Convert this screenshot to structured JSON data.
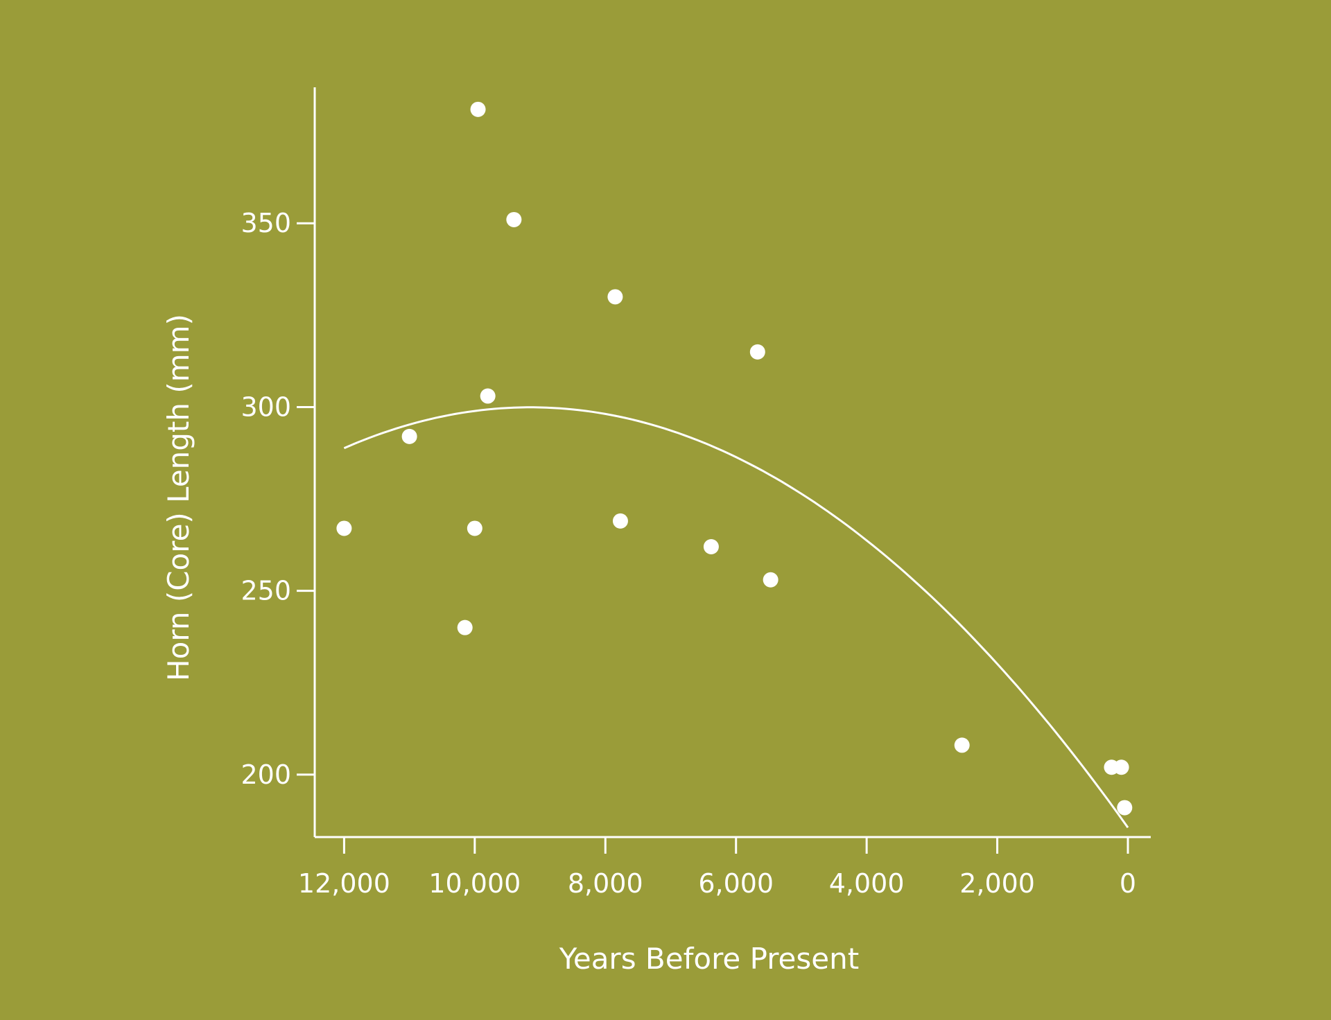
{
  "chart_data": {
    "type": "scatter",
    "xlabel": "Years Before Present",
    "ylabel": "Horn (Core) Length (mm)",
    "xlim": [
      12450,
      -350
    ],
    "ylim": [
      183,
      387
    ],
    "x_ticks": [
      12000,
      10000,
      8000,
      6000,
      4000,
      2000,
      0
    ],
    "x_tick_labels": [
      "12,000",
      "10,000",
      "8,000",
      "6,000",
      "4,000",
      "2,000",
      "0"
    ],
    "y_ticks": [
      200,
      250,
      300,
      350
    ],
    "y_tick_labels": [
      "200",
      "250",
      "300",
      "350"
    ],
    "grid": false,
    "legend": "none",
    "points": [
      {
        "x": 12000,
        "y": 267
      },
      {
        "x": 11000,
        "y": 292
      },
      {
        "x": 10150,
        "y": 240
      },
      {
        "x": 10000,
        "y": 267
      },
      {
        "x": 9950,
        "y": 381
      },
      {
        "x": 9800,
        "y": 303
      },
      {
        "x": 9400,
        "y": 351
      },
      {
        "x": 7850,
        "y": 330
      },
      {
        "x": 7770,
        "y": 269
      },
      {
        "x": 6380,
        "y": 262
      },
      {
        "x": 5670,
        "y": 315
      },
      {
        "x": 5470,
        "y": 253
      },
      {
        "x": 2540,
        "y": 208
      },
      {
        "x": 250,
        "y": 202
      },
      {
        "x": 100,
        "y": 202
      },
      {
        "x": 50,
        "y": 191
      }
    ],
    "trend": {
      "type": "quadratic",
      "points": [
        {
          "x": 12000,
          "y": 289
        },
        {
          "x": 9200,
          "y": 300
        },
        {
          "x": 7800,
          "y": 297
        },
        {
          "x": 6000,
          "y": 286
        },
        {
          "x": 4000,
          "y": 264
        },
        {
          "x": 2000,
          "y": 231
        },
        {
          "x": 0,
          "y": 185
        }
      ]
    },
    "colors": {
      "background": "#9a9c39",
      "foreground": "#ffffff"
    }
  }
}
